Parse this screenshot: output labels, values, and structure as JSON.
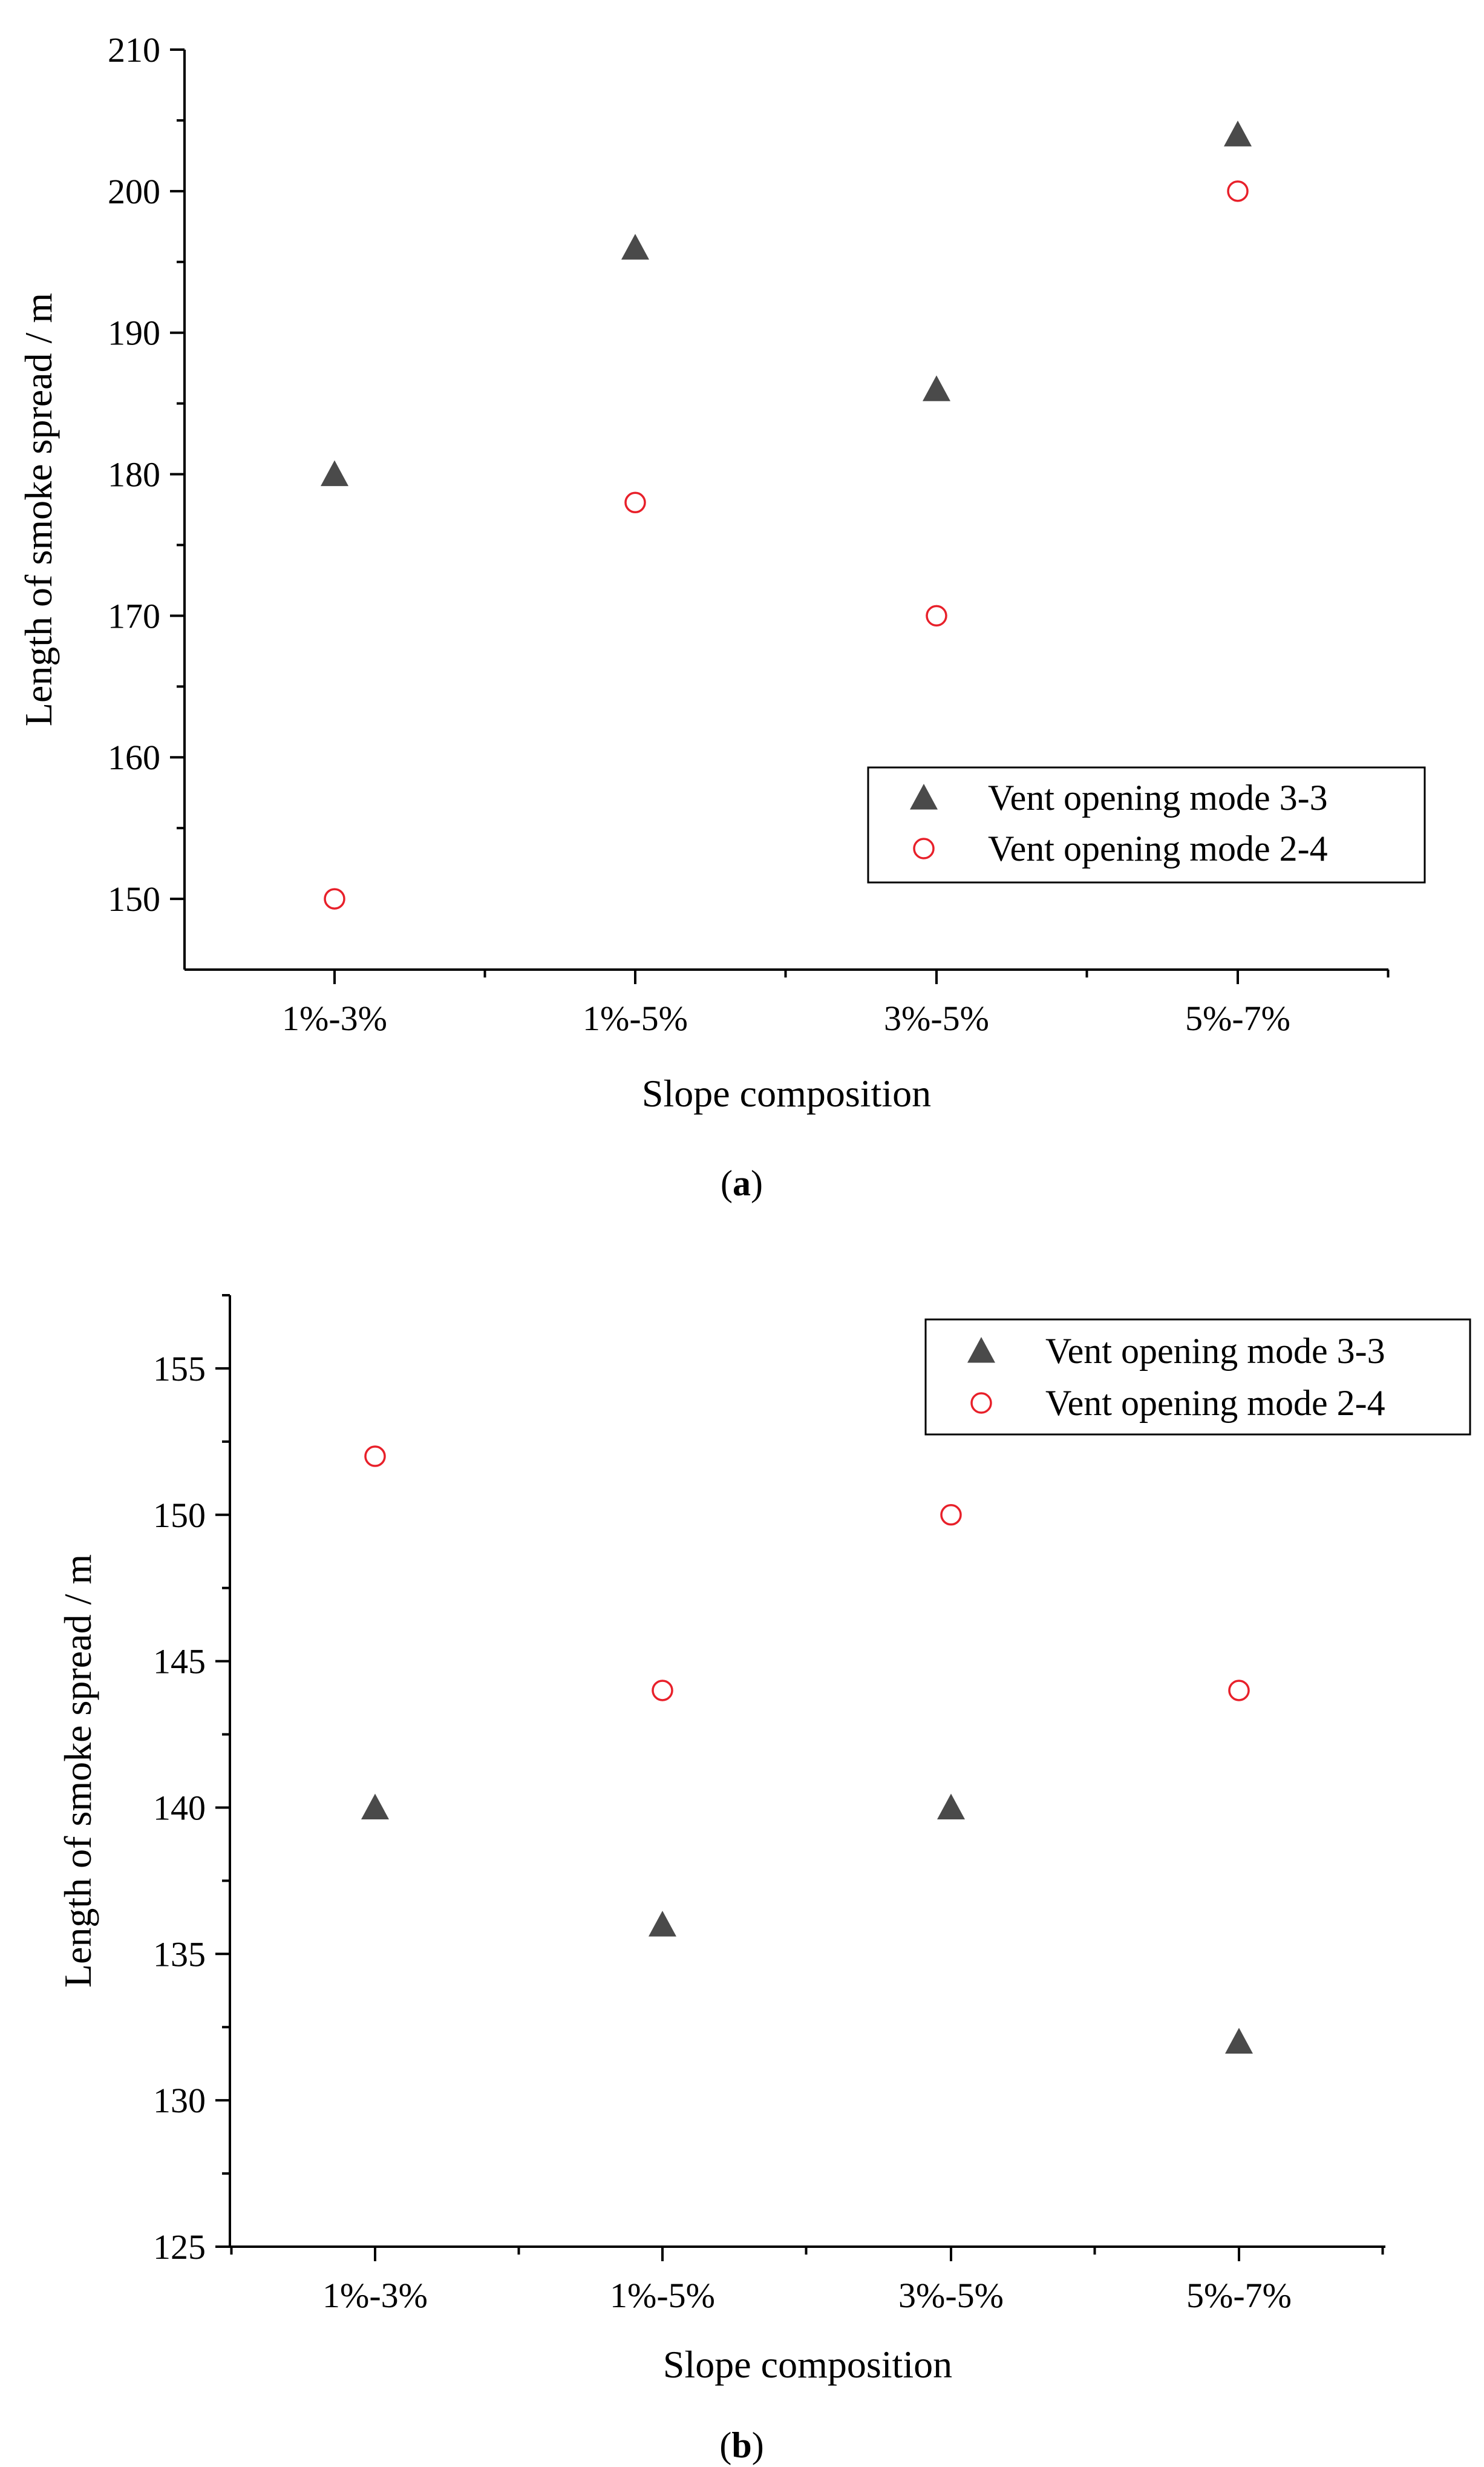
{
  "panels": [
    {
      "label": "a"
    },
    {
      "label": "b"
    }
  ],
  "chart_data": [
    {
      "type": "scatter",
      "panel_label": "a",
      "title": "",
      "xlabel": "Slope composition",
      "ylabel": "Length of smoke spread / m",
      "categories": [
        "1%-3%",
        "1%-5%",
        "3%-5%",
        "5%-7%"
      ],
      "ylim": [
        145,
        210
      ],
      "yticks": [
        150,
        160,
        170,
        180,
        190,
        200,
        210
      ],
      "grid": false,
      "legend_position": "lower-right",
      "series": [
        {
          "name": "Vent opening mode 3-3",
          "marker": "filled-triangle",
          "color": "#4a4a4a",
          "values": [
            180,
            196,
            186,
            204
          ]
        },
        {
          "name": "Vent opening mode 2-4",
          "marker": "open-circle",
          "color": "#e8202a",
          "values": [
            150,
            178,
            170,
            200
          ]
        }
      ]
    },
    {
      "type": "scatter",
      "panel_label": "b",
      "title": "",
      "xlabel": "Slope composition",
      "ylabel": "Length of smoke spread / m",
      "categories": [
        "1%-3%",
        "1%-5%",
        "3%-5%",
        "5%-7%"
      ],
      "ylim": [
        125,
        157.5
      ],
      "yticks": [
        125,
        130,
        135,
        140,
        145,
        150,
        155
      ],
      "grid": false,
      "legend_position": "top-right",
      "series": [
        {
          "name": "Vent opening mode 3-3",
          "marker": "filled-triangle",
          "color": "#4a4a4a",
          "values": [
            140,
            136,
            140,
            132
          ]
        },
        {
          "name": "Vent opening mode 2-4",
          "marker": "open-circle",
          "color": "#e8202a",
          "values": [
            152,
            144,
            150,
            144
          ]
        }
      ]
    }
  ]
}
